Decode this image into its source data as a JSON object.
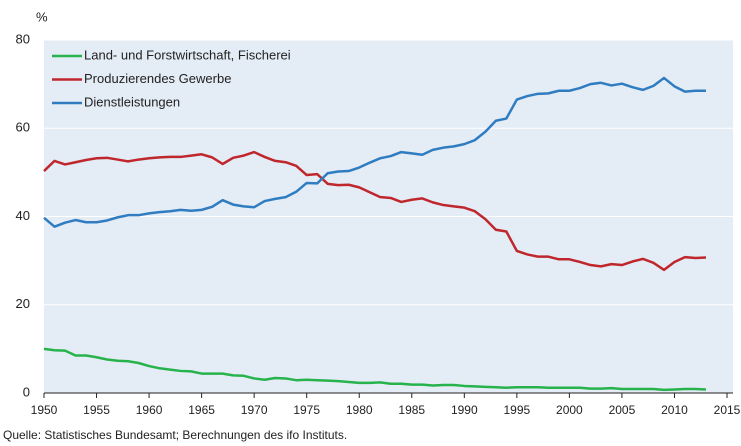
{
  "chart_data": {
    "type": "line",
    "y_unit": "%",
    "source": "Quelle: Statistisches Bundesamt; Berechnungen des ifo Instituts.",
    "x": [
      1950,
      1951,
      1952,
      1953,
      1954,
      1955,
      1956,
      1957,
      1958,
      1959,
      1960,
      1961,
      1962,
      1963,
      1964,
      1965,
      1966,
      1967,
      1968,
      1969,
      1970,
      1971,
      1972,
      1973,
      1974,
      1975,
      1976,
      1977,
      1978,
      1979,
      1980,
      1981,
      1982,
      1983,
      1984,
      1985,
      1986,
      1987,
      1988,
      1989,
      1990,
      1991,
      1992,
      1993,
      1994,
      1995,
      1996,
      1997,
      1998,
      1999,
      2000,
      2001,
      2002,
      2003,
      2004,
      2005,
      2006,
      2007,
      2008,
      2009,
      2010,
      2011,
      2012,
      2013
    ],
    "series": [
      {
        "name": "Land- und Forstwirtschaft, Fischerei",
        "color": "#27b34b",
        "values": [
          10,
          9.7,
          9.6,
          8.5,
          8.5,
          8.1,
          7.6,
          7.3,
          7.2,
          6.8,
          6.1,
          5.6,
          5.3,
          5.0,
          4.9,
          4.4,
          4.4,
          4.4,
          4.0,
          3.9,
          3.3,
          3.0,
          3.4,
          3.3,
          2.9,
          3.0,
          2.9,
          2.8,
          2.7,
          2.5,
          2.3,
          2.3,
          2.4,
          2.1,
          2.1,
          1.9,
          1.9,
          1.7,
          1.8,
          1.8,
          1.6,
          1.5,
          1.4,
          1.3,
          1.2,
          1.3,
          1.3,
          1.3,
          1.2,
          1.2,
          1.2,
          1.2,
          1.0,
          1.0,
          1.1,
          0.9,
          0.9,
          0.9,
          0.9,
          0.7,
          0.8,
          0.9,
          0.9,
          0.8
        ]
      },
      {
        "name": "Produzierendes Gewerbe",
        "color": "#c0272d",
        "values": [
          50.3,
          52.6,
          51.8,
          52.3,
          52.8,
          53.2,
          53.3,
          52.9,
          52.5,
          52.9,
          53.2,
          53.4,
          53.5,
          53.5,
          53.8,
          54.1,
          53.4,
          51.9,
          53.3,
          53.8,
          54.6,
          53.5,
          52.6,
          52.3,
          51.5,
          49.4,
          49.6,
          47.4,
          47.1,
          47.2,
          46.6,
          45.5,
          44.4,
          44.2,
          43.3,
          43.8,
          44.1,
          43.2,
          42.6,
          42.3,
          42.0,
          41.2,
          39.4,
          37.0,
          36.6,
          32.2,
          31.4,
          30.9,
          30.9,
          30.3,
          30.3,
          29.7,
          29.0,
          28.7,
          29.2,
          29.0,
          29.8,
          30.4,
          29.5,
          27.9,
          29.7,
          30.8,
          30.6,
          30.7
        ]
      },
      {
        "name": "Dienstleistungen",
        "color": "#2f7dc0",
        "values": [
          39.7,
          37.7,
          38.6,
          39.2,
          38.7,
          38.7,
          39.1,
          39.8,
          40.3,
          40.3,
          40.7,
          41.0,
          41.2,
          41.5,
          41.3,
          41.5,
          42.2,
          43.7,
          42.7,
          42.3,
          42.1,
          43.5,
          44.0,
          44.4,
          45.6,
          47.6,
          47.5,
          49.8,
          50.2,
          50.3,
          51.1,
          52.2,
          53.2,
          53.7,
          54.6,
          54.3,
          54.0,
          55.1,
          55.6,
          55.9,
          56.4,
          57.3,
          59.2,
          61.7,
          62.2,
          66.5,
          67.3,
          67.8,
          67.9,
          68.5,
          68.5,
          69.1,
          70.0,
          70.3,
          69.7,
          70.1,
          69.3,
          68.7,
          69.6,
          71.4,
          69.5,
          68.3,
          68.5,
          68.5
        ]
      }
    ],
    "xlim": [
      1950,
      2015
    ],
    "xticks": [
      1950,
      1955,
      1960,
      1965,
      1970,
      1975,
      1980,
      1985,
      1990,
      1995,
      2000,
      2005,
      2010,
      2015
    ],
    "ylim": [
      0,
      80
    ],
    "yticks": [
      0,
      20,
      40,
      60,
      80
    ],
    "grid": true,
    "legend": "top-left"
  }
}
